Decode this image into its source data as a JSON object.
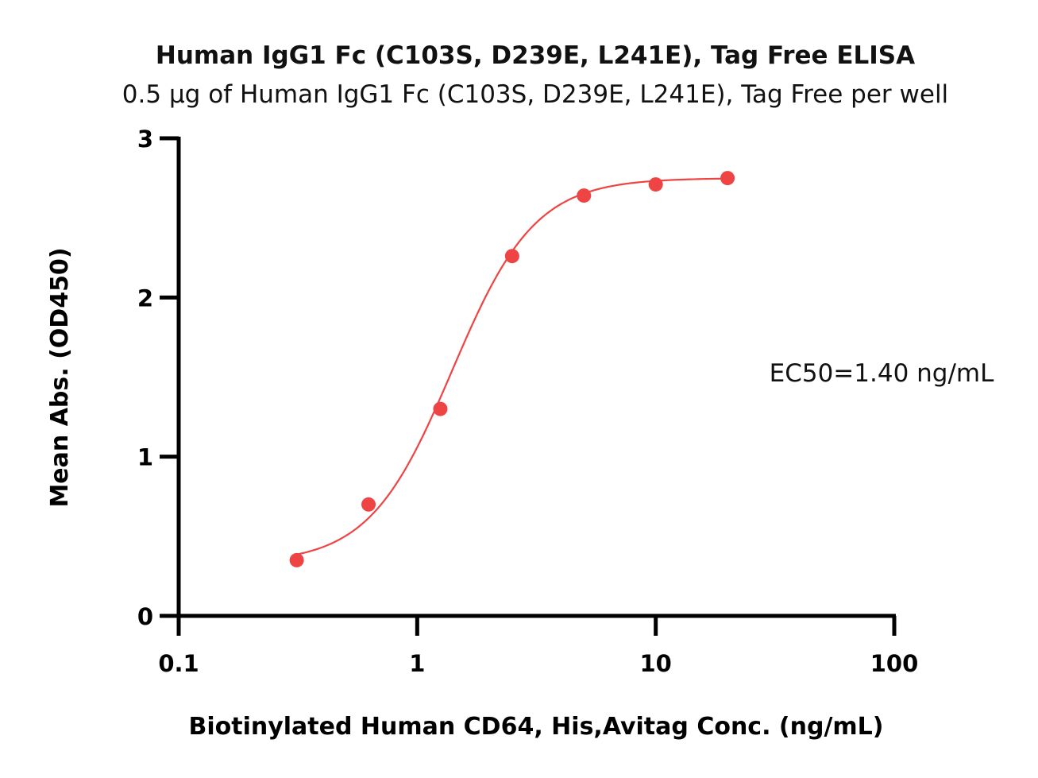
{
  "chart_data": {
    "type": "scatter",
    "title": "Human IgG1 Fc  (C103S, D239E, L241E), Tag Free ELISA",
    "subtitle": "0.5 µg of Human IgG1 Fc  (C103S, D239E, L241E), Tag Free per well",
    "xlabel": "Biotinylated Human CD64, His,Avitag Conc. (ng/mL)",
    "ylabel": "Mean Abs. (OD450)",
    "x_scale": "log",
    "xlim": [
      0.1,
      100
    ],
    "ylim": [
      0,
      3
    ],
    "x_ticks": [
      0.1,
      1,
      10,
      100
    ],
    "x_tick_labels": [
      "0.1",
      "1",
      "10",
      "100"
    ],
    "y_ticks": [
      0,
      1,
      2,
      3
    ],
    "y_tick_labels": [
      "0",
      "1",
      "2",
      "3"
    ],
    "grid": false,
    "series": [
      {
        "x": [
          0.3125,
          0.625,
          1.25,
          2.5,
          5,
          10,
          20
        ],
        "y": [
          0.35,
          0.7,
          1.3,
          2.26,
          2.64,
          2.71,
          2.75
        ],
        "color": "#ef4444",
        "fit": {
          "model": "4PL",
          "bottom": 0.33,
          "top": 2.75,
          "ec50": 1.4,
          "hill": 2.5
        }
      }
    ],
    "annotations": [
      {
        "text": "EC50=1.40 ng/mL"
      }
    ]
  }
}
